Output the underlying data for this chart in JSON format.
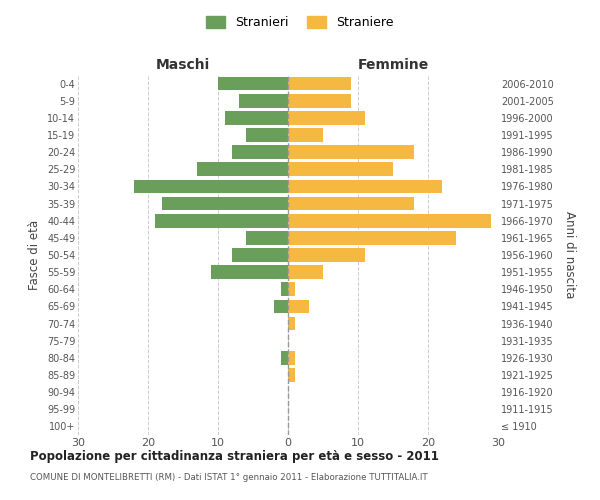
{
  "age_groups": [
    "100+",
    "95-99",
    "90-94",
    "85-89",
    "80-84",
    "75-79",
    "70-74",
    "65-69",
    "60-64",
    "55-59",
    "50-54",
    "45-49",
    "40-44",
    "35-39",
    "30-34",
    "25-29",
    "20-24",
    "15-19",
    "10-14",
    "5-9",
    "0-4"
  ],
  "birth_years": [
    "≤ 1910",
    "1911-1915",
    "1916-1920",
    "1921-1925",
    "1926-1930",
    "1931-1935",
    "1936-1940",
    "1941-1945",
    "1946-1950",
    "1951-1955",
    "1956-1960",
    "1961-1965",
    "1966-1970",
    "1971-1975",
    "1976-1980",
    "1981-1985",
    "1986-1990",
    "1991-1995",
    "1996-2000",
    "2001-2005",
    "2006-2010"
  ],
  "maschi": [
    0,
    0,
    0,
    0,
    1,
    0,
    0,
    2,
    1,
    11,
    8,
    6,
    19,
    18,
    22,
    13,
    8,
    6,
    9,
    7,
    10
  ],
  "femmine": [
    0,
    0,
    0,
    1,
    1,
    0,
    1,
    3,
    1,
    5,
    11,
    24,
    29,
    18,
    22,
    15,
    18,
    5,
    11,
    9,
    9
  ],
  "maschi_color": "#6a9f5b",
  "femmine_color": "#f5b942",
  "background_color": "#ffffff",
  "grid_color": "#cccccc",
  "title": "Popolazione per cittadinanza straniera per età e sesso - 2011",
  "subtitle": "COMUNE DI MONTELIBRETTI (RM) - Dati ISTAT 1° gennaio 2011 - Elaborazione TUTTITALIA.IT",
  "xlabel_left": "Maschi",
  "xlabel_right": "Femmine",
  "ylabel_left": "Fasce di età",
  "ylabel_right": "Anni di nascita",
  "legend_maschi": "Stranieri",
  "legend_femmine": "Straniere",
  "xlim": 30,
  "bar_height": 0.8
}
